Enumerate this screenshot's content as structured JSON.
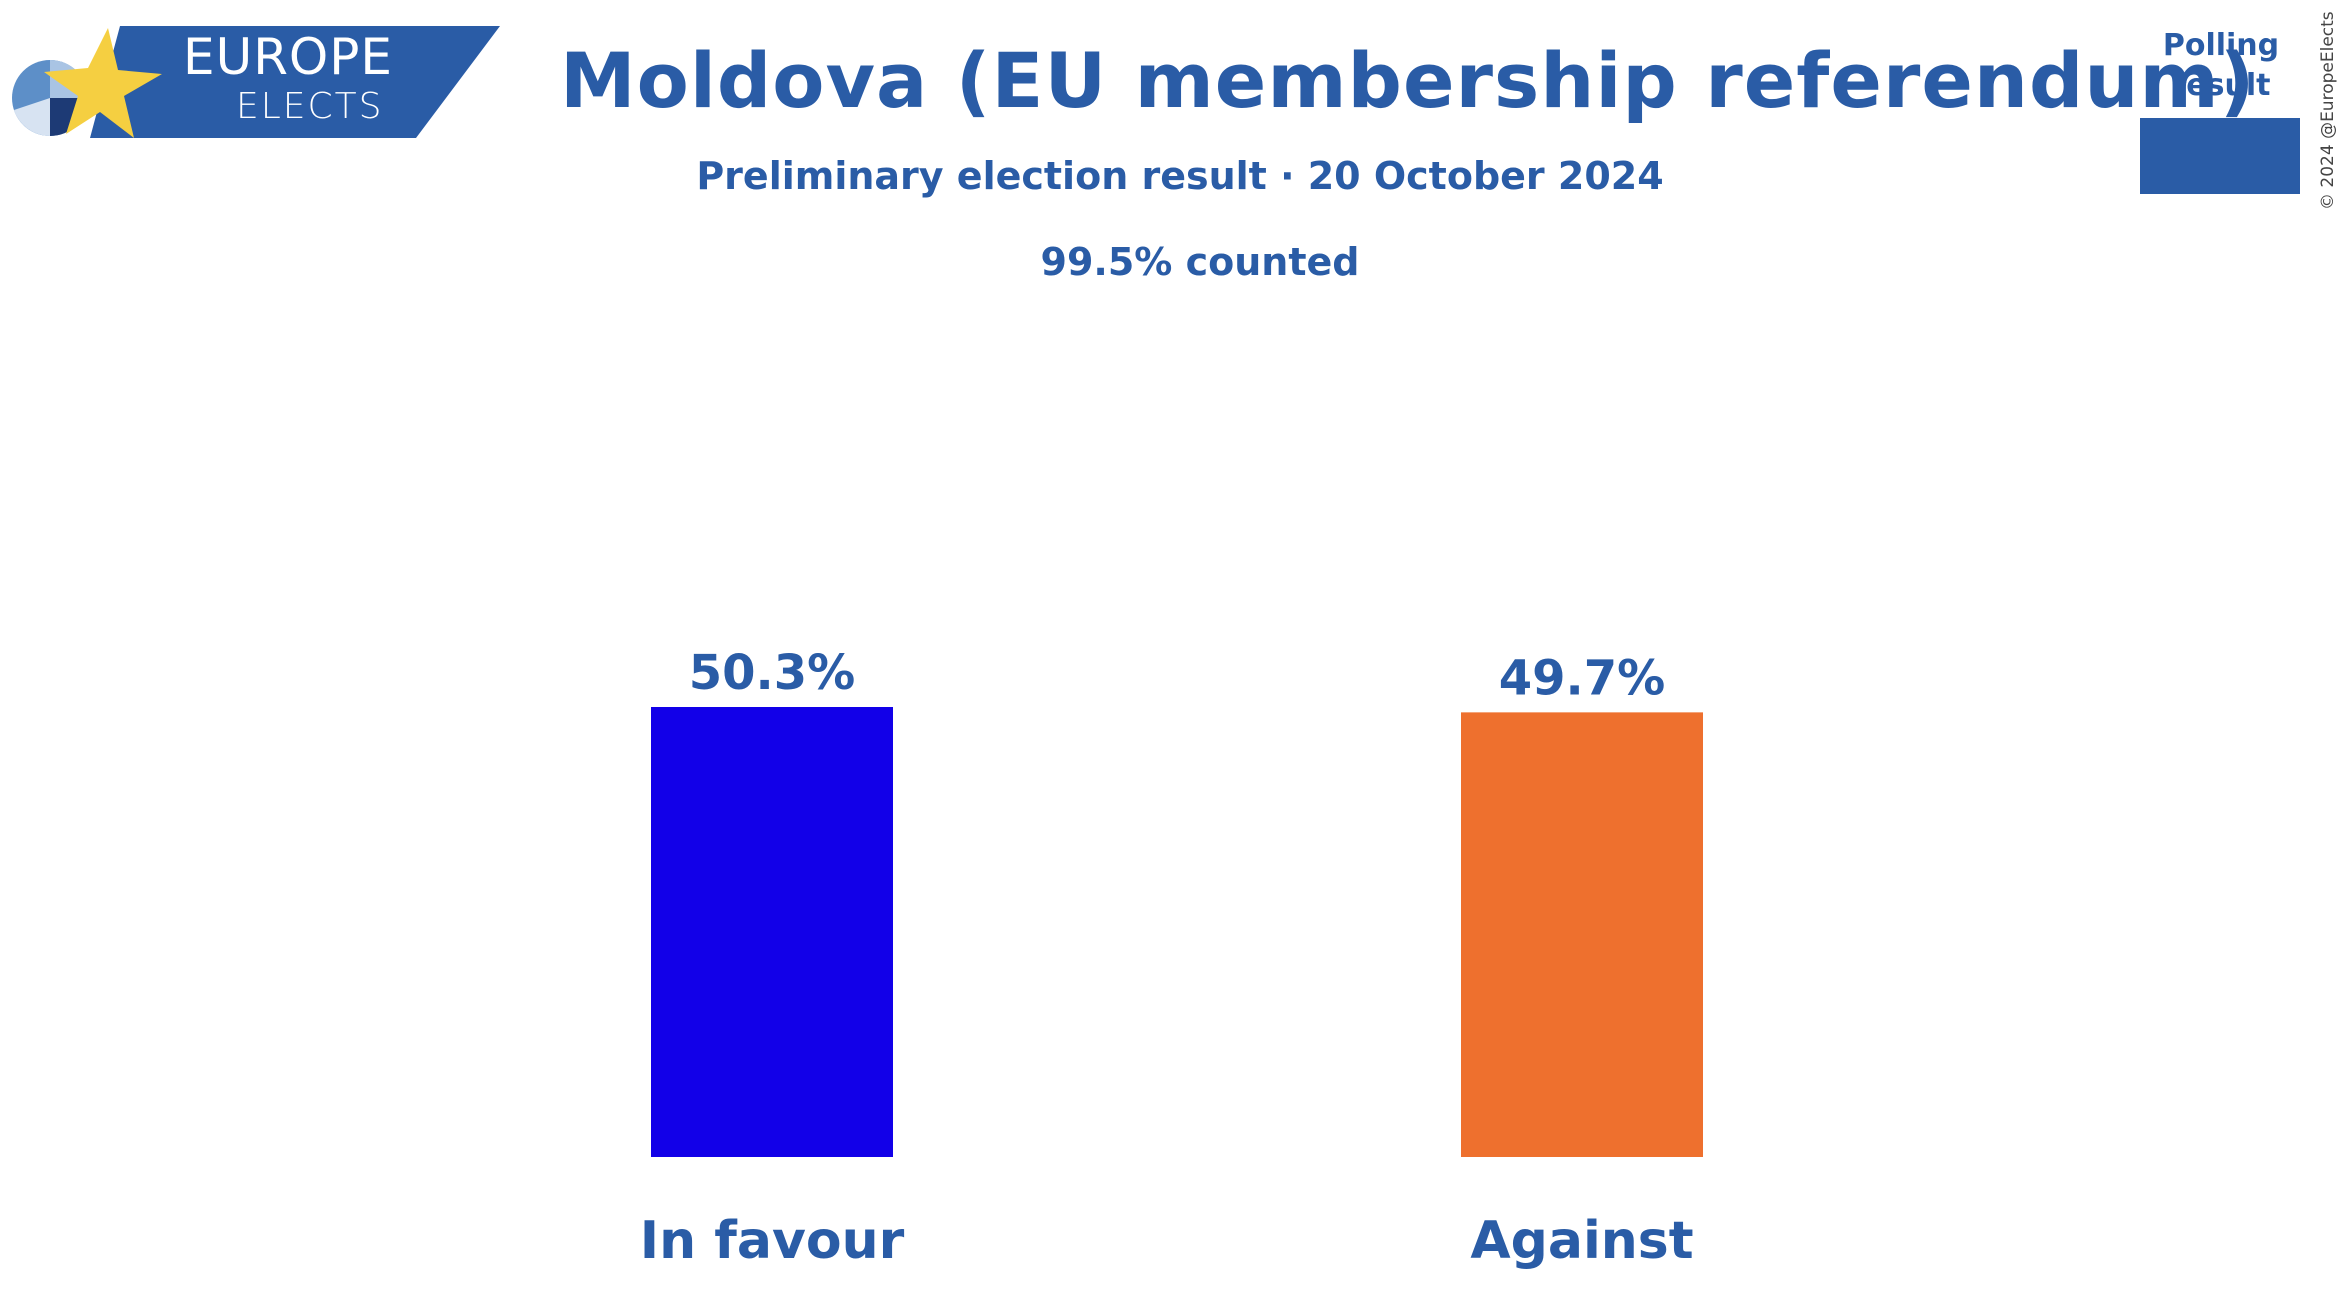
{
  "logo": {
    "word1": "EUROPE",
    "word2": "ELECTS",
    "brand_color": "#2a5ca6",
    "star_color": "#f5cf41"
  },
  "header": {
    "title": "Moldova (EU membership referendum)",
    "subtitle": "Preliminary election result · 20 October 2024",
    "counted": "99.5% counted"
  },
  "legend": {
    "label_line1": "Polling",
    "label_line2": "result",
    "swatch_color": "#2a5ca6"
  },
  "copyright": "© 2024 @EuropeElects",
  "chart_data": {
    "type": "bar",
    "categories": [
      "In favour",
      "Against"
    ],
    "values": [
      50.3,
      49.7
    ],
    "value_labels": [
      "50.3%",
      "49.7%"
    ],
    "colors": [
      "#1200e8",
      "#ee702e"
    ],
    "ylim": [
      0,
      100
    ],
    "grid": false
  }
}
